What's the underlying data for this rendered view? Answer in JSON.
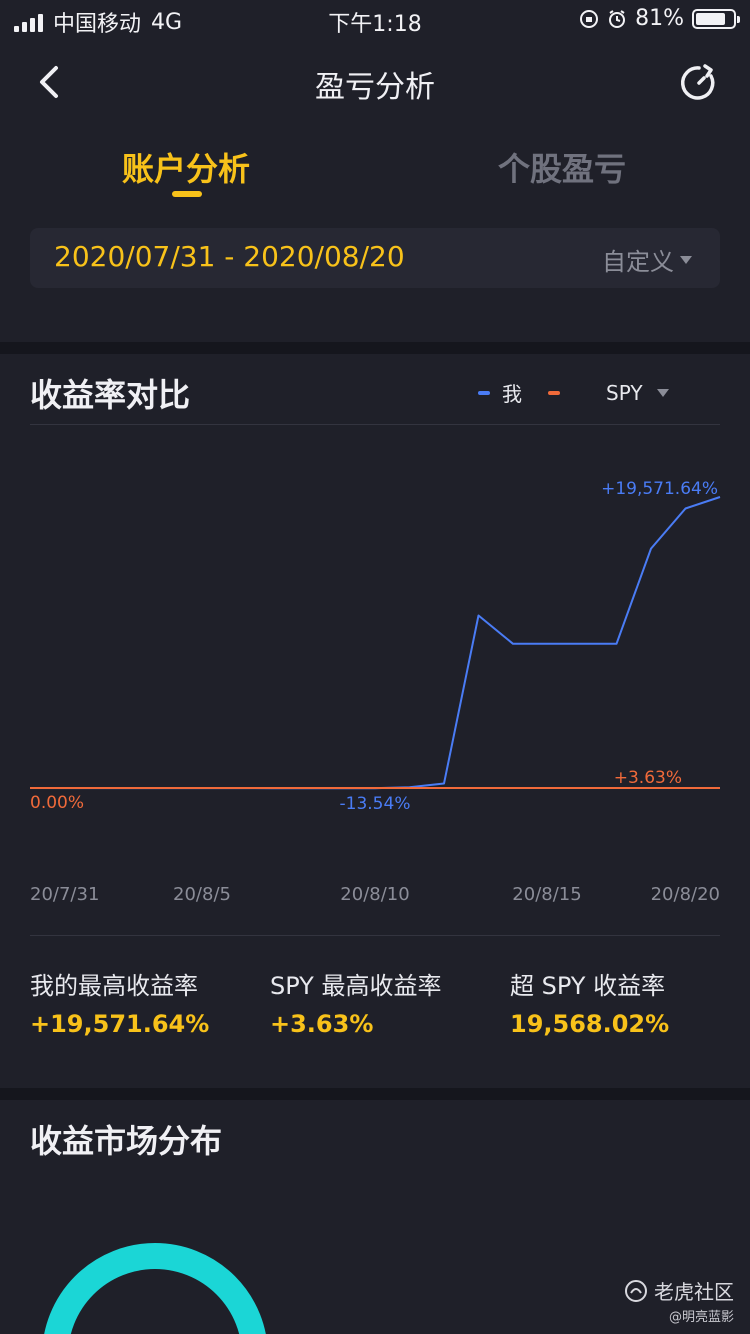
{
  "status_bar": {
    "carrier": "中国移动",
    "network": "4G",
    "time": "下午1:18",
    "battery_percent": "81%",
    "battery_level": 0.81
  },
  "nav": {
    "title": "盈亏分析",
    "back_icon": "chevron-left-icon",
    "refresh_icon": "refresh-icon"
  },
  "tabs": [
    {
      "label": "账户分析",
      "active": true
    },
    {
      "label": "个股盈亏",
      "active": false
    }
  ],
  "date_filter": {
    "range": "2020/07/31 - 2020/08/20",
    "mode_label": "自定义"
  },
  "comparison": {
    "title": "收益率对比",
    "legend": [
      {
        "label": "我",
        "color": "#4a7cf5"
      },
      {
        "label": "SPY",
        "color": "#f06a3a"
      }
    ]
  },
  "chart_data": {
    "type": "line",
    "x_tick_labels": [
      "20/7/31",
      "20/8/5",
      "20/8/10",
      "20/8/15",
      "20/8/20"
    ],
    "series": [
      {
        "name": "我",
        "color": "#4a7cf5",
        "x": [
          "2020-07-31",
          "2020-08-03",
          "2020-08-04",
          "2020-08-05",
          "2020-08-06",
          "2020-08-07",
          "2020-08-10",
          "2020-08-11",
          "2020-08-12",
          "2020-08-13",
          "2020-08-14",
          "2020-08-17",
          "2020-08-18",
          "2020-08-19",
          "2020-08-20"
        ],
        "values": [
          0,
          -5,
          -8,
          -6,
          -10,
          -12,
          -13.54,
          50,
          300,
          11600,
          9700,
          9700,
          16100,
          18800,
          19571.64
        ]
      },
      {
        "name": "SPY",
        "color": "#f06a3a",
        "x": [
          "2020-07-31",
          "2020-08-20"
        ],
        "values": [
          0,
          3.63
        ]
      }
    ],
    "annotations": [
      {
        "text": "+19,571.64%",
        "color": "#4a7cf5"
      },
      {
        "text": "+3.63%",
        "color": "#f06a3a"
      },
      {
        "text": "0.00%",
        "color": "#f06a3a"
      },
      {
        "text": "-13.54%",
        "color": "#4a7cf5"
      }
    ],
    "ylim": [
      -200,
      21500
    ],
    "grid": false
  },
  "stats": [
    {
      "label": "我的最高收益率",
      "value": "+19,571.64%"
    },
    {
      "label": "SPY 最高收益率",
      "value": "+3.63%"
    },
    {
      "label": "超 SPY 收益率",
      "value": "19,568.02%"
    }
  ],
  "distribution": {
    "title": "收益市场分布",
    "ring_color": "#1bd6d6"
  },
  "watermark": {
    "brand": "老虎社区",
    "handle": "@明亮蓝影"
  }
}
